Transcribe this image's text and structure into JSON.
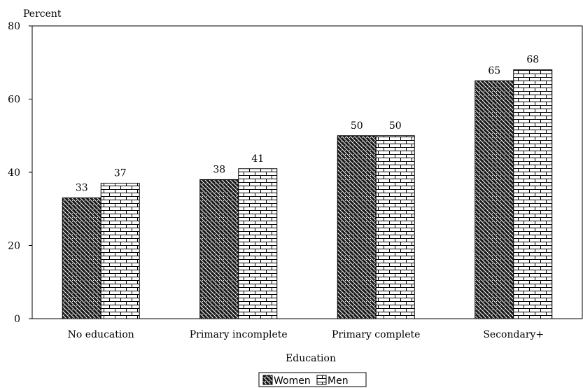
{
  "chart_data": {
    "type": "bar",
    "title": "",
    "ylabel": "Percent",
    "xlabel": "Education",
    "ylim": [
      0,
      80
    ],
    "yticks": [
      0,
      20,
      40,
      60,
      80
    ],
    "grid": false,
    "categories": [
      "No education",
      "Primary incomplete",
      "Primary complete",
      "Secondary+"
    ],
    "series": [
      {
        "name": "Women",
        "values": [
          33,
          38,
          50,
          65
        ],
        "pattern": "dark-crosshatch"
      },
      {
        "name": "Men",
        "values": [
          37,
          41,
          50,
          68
        ],
        "pattern": "light-brick"
      }
    ],
    "legend_position": "bottom-center",
    "data_labels": true
  }
}
